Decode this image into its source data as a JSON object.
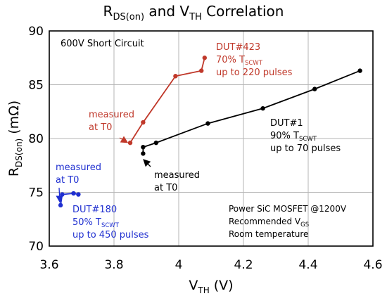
{
  "chart_data": {
    "type": "scatter",
    "title": {
      "main": "R",
      "sub": "DS(on)",
      "tail": " and V",
      "sub2": "TH",
      "tail2": " Correlation"
    },
    "xlabel": {
      "main": "V",
      "sub": "TH",
      "tail": " (V)"
    },
    "ylabel": {
      "main": "R",
      "sub": "DS(on)",
      "tail": " (mΩ)"
    },
    "xlim": [
      3.6,
      4.6
    ],
    "ylim": [
      70,
      90
    ],
    "xticks": [
      3.6,
      3.8,
      4.0,
      4.2,
      4.4,
      4.6
    ],
    "xtick_labels": [
      "3.6",
      "3.8",
      "4",
      "4.2",
      "4.4",
      "4.6"
    ],
    "yticks": [
      70,
      75,
      80,
      85,
      90
    ],
    "ytick_labels": [
      "70",
      "75",
      "80",
      "85",
      "90"
    ],
    "grid": true,
    "series": [
      {
        "name": "DUT#423",
        "color": "#c0392b",
        "points": [
          [
            3.85,
            79.6
          ],
          [
            3.89,
            81.5
          ],
          [
            3.99,
            85.8
          ],
          [
            4.07,
            86.3
          ],
          [
            4.08,
            87.5
          ]
        ]
      },
      {
        "name": "DUT#1",
        "color": "#000000",
        "points": [
          [
            3.89,
            78.6
          ],
          [
            3.89,
            79.2
          ],
          [
            3.93,
            79.6
          ],
          [
            4.09,
            81.4
          ],
          [
            4.26,
            82.8
          ],
          [
            4.42,
            84.6
          ],
          [
            4.56,
            86.3
          ]
        ]
      },
      {
        "name": "DUT#180",
        "color": "#1f2fd0",
        "points": [
          [
            3.635,
            73.8
          ],
          [
            3.64,
            74.8
          ],
          [
            3.675,
            74.9
          ],
          [
            3.69,
            74.8
          ]
        ]
      }
    ],
    "annotations": {
      "corner_label": "600V Short Circuit",
      "dut423": {
        "line1": "DUT#423",
        "line2_main": "70% T",
        "line2_sub": "SCWT",
        "line3": "up to 220 pulses"
      },
      "dut1": {
        "line1": "DUT#1",
        "line2_main": "90% T",
        "line2_sub": "SCWT",
        "line3": "up to 70 pulses"
      },
      "dut180": {
        "line1": "DUT#180",
        "line2_main": "50% T",
        "line2_sub": "SCWT",
        "line3": "up to 450 pulses"
      },
      "measured_red": {
        "line1": "measured",
        "line2": "at T0"
      },
      "measured_black": {
        "line1": "measured",
        "line2": "at T0"
      },
      "measured_blue": {
        "line1": "measured",
        "line2": "at T0"
      },
      "info": {
        "line1": "Power SiC MOSFET @1200V",
        "line2_main": "Recommended V",
        "line2_sub": "GS",
        "line3": "Room temperature"
      }
    }
  }
}
